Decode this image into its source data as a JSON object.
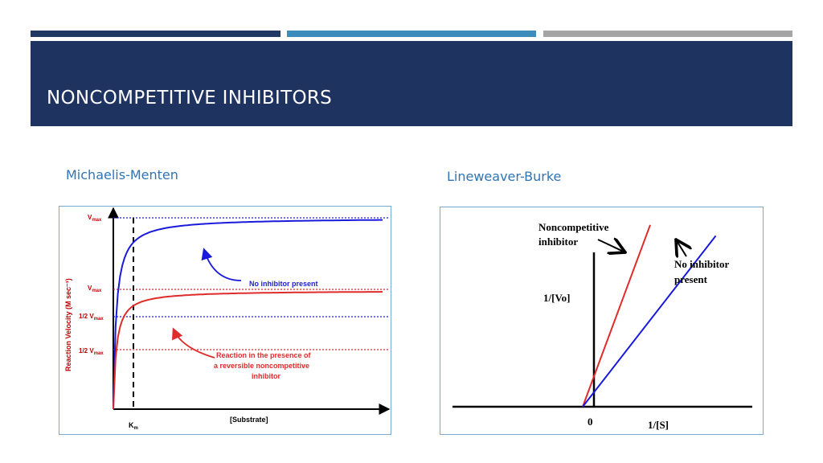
{
  "slide": {
    "title": "NONCOMPETITIVE INHIBITORS",
    "left_subtitle": "Michaelis-Menten",
    "right_subtitle": "Lineweaver-Burke"
  },
  "colors": {
    "band_1": "#1f3864",
    "band_2": "#3c8dbc",
    "band_3": "#a5a5a5",
    "header_bg": "#1f3360",
    "subtitle": "#2e75b6",
    "no_inhibitor": "#1a1adc",
    "inhibitor": "#e02b2b",
    "axis_label": "#c00000",
    "axis": "#000000"
  },
  "chart_data": [
    {
      "type": "line",
      "ylabel": "Reaction Velocity (M sec⁻¹)",
      "xlabel": "[Substrate]",
      "x_tick": "Km",
      "y_ticks": [
        "Vmax",
        "Vmax",
        "1/2 Vmax",
        "1/2 Vmax"
      ],
      "km_marker": 1,
      "series": [
        {
          "name": "No inhibitor present",
          "vmax": 1.0,
          "km": 1.0
        },
        {
          "name": "Reaction in the presence of a reversible noncompetitive inhibitor",
          "vmax": 0.62,
          "km": 1.0
        }
      ],
      "annotations": [
        "No inhibitor present",
        "Reaction in the presence of",
        "a reversible noncompetitive",
        "inhibitor"
      ],
      "xlim": [
        0,
        10
      ],
      "ylim": [
        0,
        1.05
      ],
      "grid": false
    },
    {
      "type": "line",
      "xlabel": "1/[S]",
      "ylabel": "1/[Vo]",
      "x_tick": "0",
      "series": [
        {
          "name": "Noncompetitive inhibitor",
          "x_intercept": -1,
          "slope": 1.3
        },
        {
          "name": "No inhibitor present",
          "x_intercept": -1,
          "slope": 0.62
        }
      ],
      "annotations": [
        "Noncompetitive",
        "inhibitor",
        "No inhibitor",
        "present"
      ],
      "xlim": [
        -3.5,
        7.5
      ],
      "ylim": [
        0,
        7.8
      ],
      "grid": false
    }
  ]
}
